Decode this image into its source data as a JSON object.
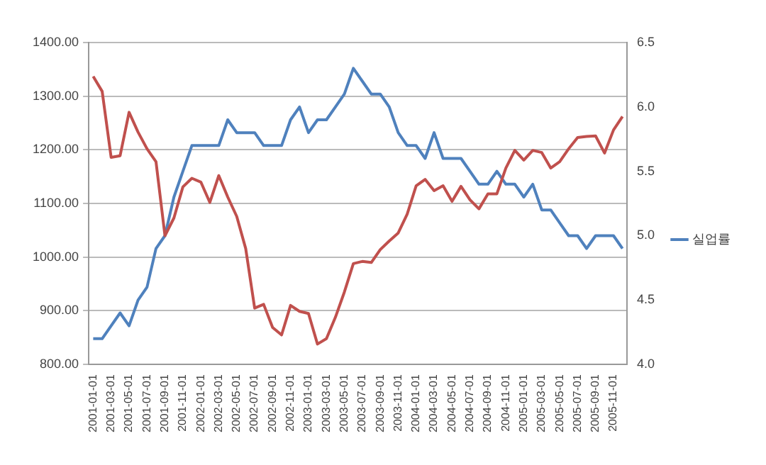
{
  "chart_data": {
    "type": "line",
    "categories": [
      "2001-01-01",
      null,
      "2001-03-01",
      null,
      "2001-05-01",
      null,
      "2001-07-01",
      null,
      "2001-09-01",
      null,
      "2001-11-01",
      null,
      "2002-01-01",
      null,
      "2002-03-01",
      null,
      "2002-05-01",
      null,
      "2002-07-01",
      null,
      "2002-09-01",
      null,
      "2002-11-01",
      null,
      "2003-01-01",
      null,
      "2003-03-01",
      null,
      "2003-05-01",
      null,
      "2003-07-01",
      null,
      "2003-09-01",
      null,
      "2003-11-01",
      null,
      "2004-01-01",
      null,
      "2004-03-01",
      null,
      "2004-05-01",
      null,
      "2004-07-01",
      null,
      "2004-09-01",
      null,
      "2004-11-01",
      null,
      "2005-01-01",
      null,
      "2005-03-01",
      null,
      "2005-05-01",
      null,
      "2005-07-01",
      null,
      "2005-09-01",
      null,
      "2005-11-01",
      null
    ],
    "series": [
      {
        "color": "#c0504d",
        "values": [
          1337,
          1309,
          1186,
          1189,
          1270,
          1233,
          1202,
          1178,
          1040,
          1073,
          1131,
          1147,
          1140,
          1102,
          1152,
          1112,
          1076,
          1016,
          905,
          912,
          869,
          855,
          910,
          899,
          895,
          838,
          848,
          888,
          935,
          988,
          992,
          990,
          1014,
          1030,
          1045,
          1080,
          1133,
          1145,
          1124,
          1133,
          1104,
          1132,
          1107,
          1090,
          1118,
          1118,
          1166,
          1199,
          1181,
          1199,
          1195,
          1166,
          1178,
          1202,
          1223,
          1225,
          1226,
          1194,
          1237,
          1262
        ]
      },
      {
        "name": "실업률",
        "color": "#4f81bd",
        "axis": "y2",
        "values": [
          4.2,
          4.2,
          4.3,
          4.4,
          4.3,
          4.5,
          4.6,
          4.9,
          5.0,
          5.3,
          5.5,
          5.7,
          5.7,
          5.7,
          5.7,
          5.9,
          5.8,
          5.8,
          5.8,
          5.7,
          5.7,
          5.7,
          5.9,
          6.0,
          5.8,
          5.9,
          5.9,
          6.0,
          6.1,
          6.3,
          6.2,
          6.1,
          6.1,
          6.0,
          5.8,
          5.7,
          5.7,
          5.6,
          5.8,
          5.6,
          5.6,
          5.6,
          5.5,
          5.4,
          5.4,
          5.5,
          5.4,
          5.4,
          5.3,
          5.4,
          5.2,
          5.2,
          5.1,
          5.0,
          5.0,
          4.9,
          5.0,
          5.0,
          5.0,
          4.9
        ]
      }
    ],
    "ylim": [
      800,
      1400
    ],
    "yticks": [
      {
        "value": 800,
        "label": "800.00"
      },
      {
        "value": 900,
        "label": "900.00"
      },
      {
        "value": 1000,
        "label": "1000.00"
      },
      {
        "value": 1100,
        "label": "1100.00"
      },
      {
        "value": 1200,
        "label": "1200.00"
      },
      {
        "value": 1300,
        "label": "1300.00"
      },
      {
        "value": 1400,
        "label": "1400.00"
      }
    ],
    "y2lim": [
      4.0,
      6.5
    ],
    "y2ticks": [
      {
        "value": 4.0,
        "label": "4.0"
      },
      {
        "value": 4.5,
        "label": "4.5"
      },
      {
        "value": 5.0,
        "label": "5.0"
      },
      {
        "value": 5.5,
        "label": "5.5"
      },
      {
        "value": 6.0,
        "label": "6.0"
      },
      {
        "value": 6.5,
        "label": "6.5"
      }
    ],
    "grid": "y",
    "legend": "right",
    "marker": "none",
    "line_style": "solid"
  }
}
